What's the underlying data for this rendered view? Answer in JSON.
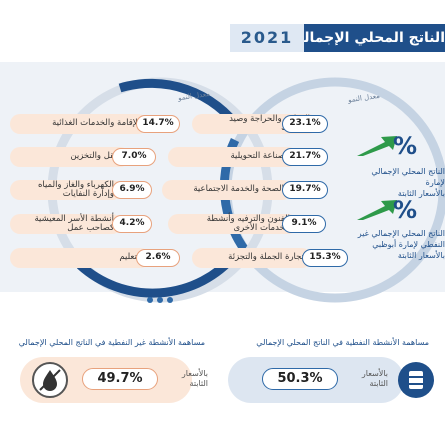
{
  "header": {
    "year": "2021",
    "title": "الناتج المحلي الإجمالي"
  },
  "rate_label": "معدل النمو",
  "right_sectors": [
    {
      "label": "الزراعة والحراجة وصيد\nالأسماك",
      "value": "23.1%"
    },
    {
      "label": "الصناعة التحويلية",
      "value": "21.7%"
    },
    {
      "label": "الصحة والخدمة الاجتماعية",
      "value": "19.7%"
    },
    {
      "label": "الفنون والترفيه وأنشطة\nالخدمات الأخرى",
      "value": "9.1%"
    },
    {
      "label": "تجارة الجملة والتجزئة",
      "value": "15.3%"
    }
  ],
  "left_sectors": [
    {
      "label": "الإقامة والخدمات الغذائية",
      "value": "14.7%"
    },
    {
      "label": "النقل والتخزين",
      "value": "7.0%"
    },
    {
      "label": "الكهرباء والغاز والمياه\nوإدارة النفايات",
      "value": "6.9%"
    },
    {
      "label": "أنشطة الأسر المعيشية\nكصاحب عمل",
      "value": "4.2%"
    },
    {
      "label": "التعليم",
      "value": "2.6%"
    }
  ],
  "growth": [
    {
      "pct": "%",
      "text": "الناتج المحلي الإجمالي لإمارة\nبالأسعار الثابتة"
    },
    {
      "pct": "%",
      "text": "الناتج المحلي الإجمالي غير\nالنفطي لإمارة أبوظبي بالأسعار الثابتة"
    }
  ],
  "oil_share": {
    "label": "مساهمة الأنشطة النفطية في الناتج المحلي الإجمالي",
    "value": "50.3%",
    "basis": "بالأسعار\nالثابتة"
  },
  "nonoil_share": {
    "label": "مساهمة الأنشطة غير النفطية في الناتج المحلي الإجمالي",
    "value": "49.7%",
    "basis": "بالأسعار\nالثابتة"
  },
  "colors": {
    "navy": "#1f4f8a",
    "green": "#2e9a4a",
    "peach": "#fbe7d9",
    "lightblue": "#dde8f3"
  },
  "icons": {
    "oil": "oil-barrel-icon",
    "nonoil": "no-oil-drop-icon",
    "arrow": "growth-arrow-icon"
  }
}
